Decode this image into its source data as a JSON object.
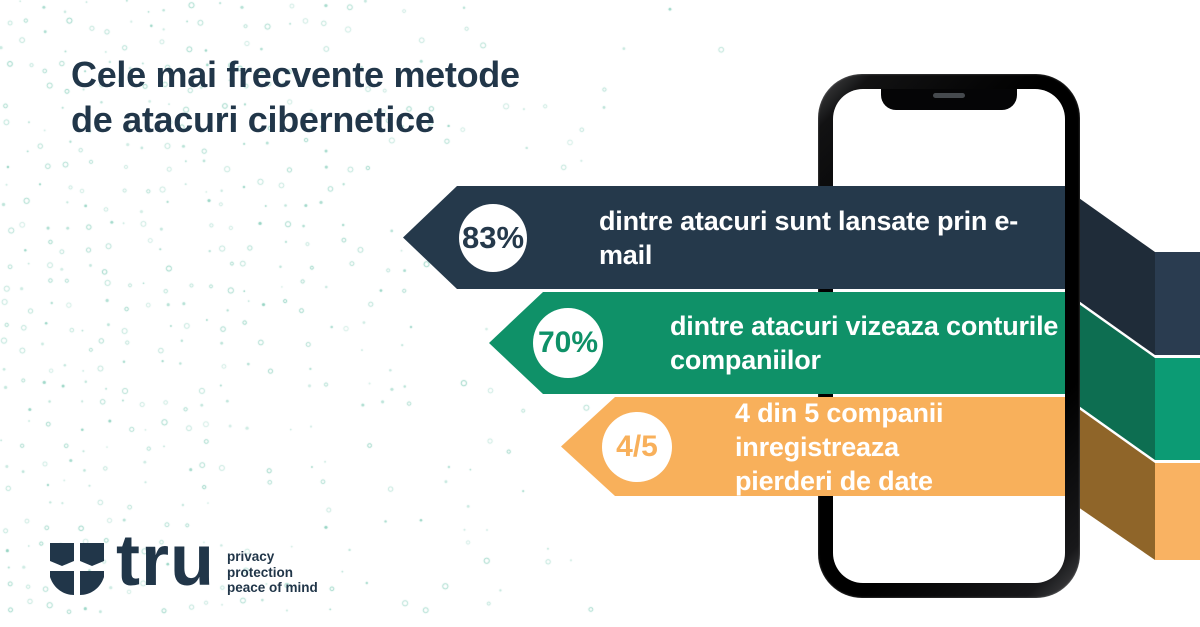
{
  "title": {
    "lines": [
      "Cele mai frecvente metode",
      "de atacuri cibernetice"
    ]
  },
  "banners": [
    {
      "badge": "83%",
      "lines": [
        "dintre atacuri sunt lansate prin e-mail",
        ""
      ]
    },
    {
      "badge": "70%",
      "lines": [
        "dintre atacuri vizeaza conturile",
        "companiilor"
      ]
    },
    {
      "badge": "4/5",
      "lines": [
        "4 din 5 companii inregistreaza",
        "pierderi de date"
      ]
    }
  ],
  "logo": {
    "wordmark": "tru",
    "tagline": [
      "privacy",
      "protection",
      "peace of mind"
    ]
  },
  "colors": {
    "title_text": "#213649",
    "navy": "#25394b",
    "navy_fold": "#1f2c39",
    "navy_side": "#2a3c50",
    "green": "#0f9168",
    "green_fold": "#0d6e51",
    "green_side": "#0c9b74",
    "orange": "#f8b05b",
    "orange_fold": "#8f6529",
    "orange_side": "#f9b262",
    "badge_bg": "#ffffff",
    "banner_text": "#ffffff",
    "dots": "#8ed1bf"
  }
}
